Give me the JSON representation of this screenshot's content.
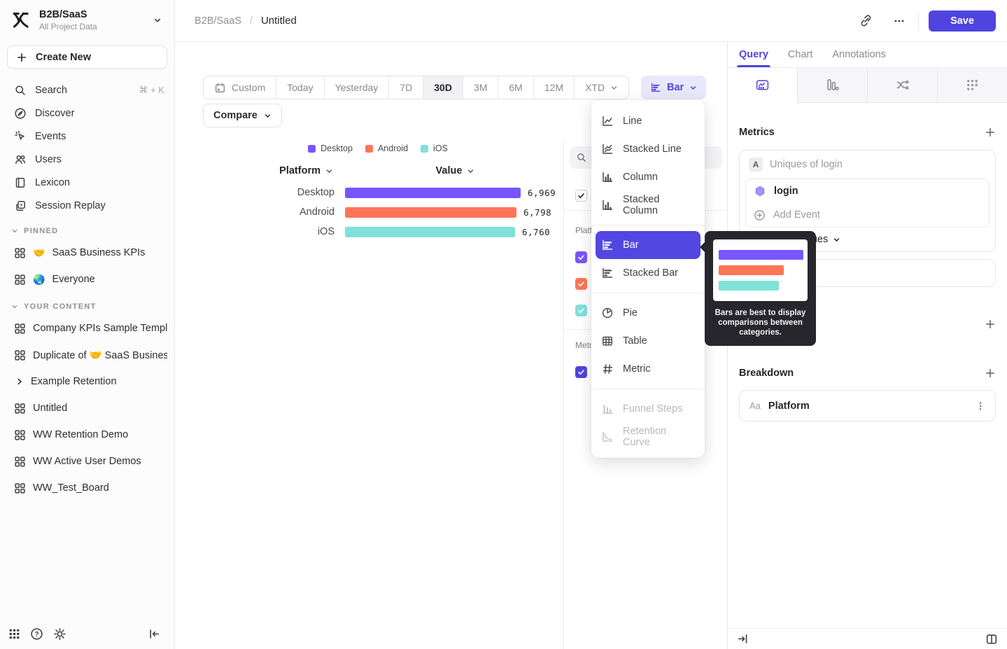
{
  "app": {
    "accent": "#4f44e0",
    "menu_selected": "#5347e2",
    "tooltip_bg": "#26262c"
  },
  "sidebar": {
    "project": {
      "name": "B2B/SaaS",
      "subtitle": "All Project Data"
    },
    "create_new": "Create New",
    "nav": [
      {
        "label": "Search",
        "shortcut": "⌘ + K"
      },
      {
        "label": "Discover"
      },
      {
        "label": "Events"
      },
      {
        "label": "Users"
      },
      {
        "label": "Lexicon"
      },
      {
        "label": "Session Replay"
      }
    ],
    "pinned": {
      "header": "PINNED",
      "items": [
        {
          "emoji": "🤝",
          "label": "SaaS Business KPIs"
        },
        {
          "emoji": "🌏",
          "label": "Everyone"
        }
      ]
    },
    "your_content": {
      "header": "YOUR CONTENT",
      "items": [
        {
          "label": "Company KPIs Sample Templat"
        },
        {
          "label": "Duplicate of 🤝 SaaS Business"
        },
        {
          "label": "Example Retention"
        },
        {
          "label": "Untitled"
        },
        {
          "label": "WW Retention Demo"
        },
        {
          "label": "WW Active User Demos"
        },
        {
          "label": "WW_Test_Board"
        }
      ]
    }
  },
  "topbar": {
    "breadcrumb_project": "B2B/SaaS",
    "breadcrumb_sep": "/",
    "breadcrumb_page": "Untitled",
    "save_label": "Save"
  },
  "toolbar": {
    "ranges": [
      "Custom",
      "Today",
      "Yesterday",
      "7D",
      "30D",
      "3M",
      "6M",
      "12M",
      "XTD"
    ],
    "selected_range": "30D",
    "compare_label": "Compare",
    "chart_type_label": "Bar"
  },
  "chart_data": {
    "type": "bar",
    "orientation": "horizontal",
    "categories": [
      "Desktop",
      "Android",
      "iOS"
    ],
    "values": [
      6969,
      6798,
      6760
    ],
    "value_labels": [
      "6,969",
      "6,798",
      "6,760"
    ],
    "colors": [
      "#7856FF",
      "#FF7557",
      "#80E1D9"
    ],
    "legend": [
      "Desktop",
      "Android",
      "iOS"
    ],
    "legend_position": "top",
    "columns": {
      "platform": "Platform",
      "value": "Value"
    },
    "xlim": [
      0,
      6969
    ],
    "title": ""
  },
  "series_panel": {
    "platform_label": "Platform",
    "metrics_label": "Metrics"
  },
  "chart_menu": {
    "items": [
      {
        "label": "Line"
      },
      {
        "label": "Stacked Line"
      },
      {
        "label": "Column"
      },
      {
        "label": "Stacked Column"
      },
      {
        "label": "Bar"
      },
      {
        "label": "Stacked Bar"
      },
      {
        "label": "Pie"
      },
      {
        "label": "Table"
      },
      {
        "label": "Metric"
      },
      {
        "label": "Funnel Steps"
      },
      {
        "label": "Retention Curve"
      }
    ],
    "selected": "Bar",
    "disabled": [
      "Funnel Steps",
      "Retention Curve"
    ]
  },
  "tooltip": {
    "text": "Bars are best to display comparisons between categories."
  },
  "query_panel": {
    "tabs": [
      {
        "label": "Query"
      },
      {
        "label": "Chart"
      },
      {
        "label": "Annotations"
      }
    ],
    "active_tab": "Query",
    "metrics": {
      "header": "Metrics",
      "letter": "A",
      "metric_name": "Uniques of login",
      "event": "login",
      "add_event": "Add Event",
      "measurement": "Uniques"
    },
    "breakdown": {
      "header": "Breakdown",
      "property_type": "Aa",
      "property": "Platform"
    }
  }
}
